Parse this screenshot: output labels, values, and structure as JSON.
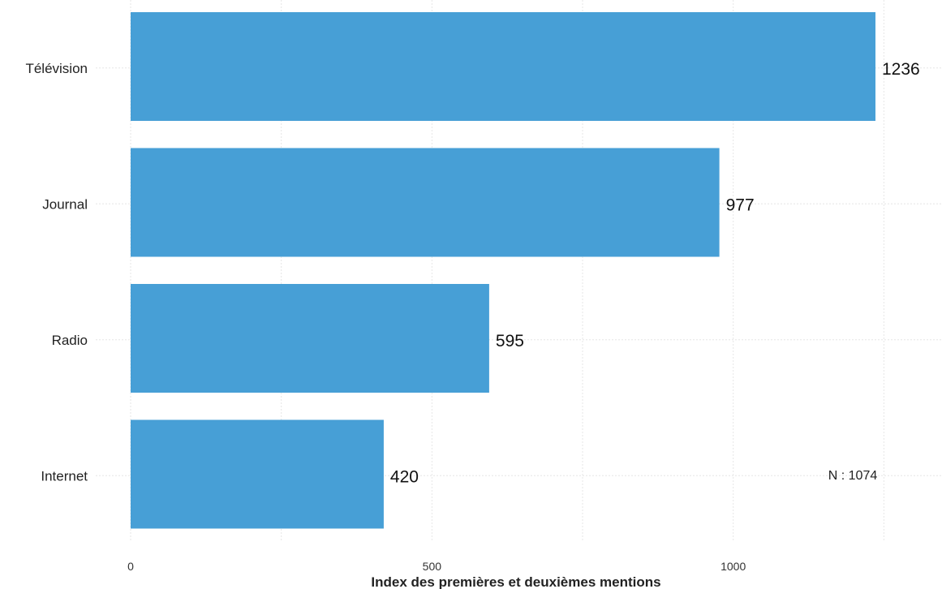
{
  "chart_data": {
    "type": "bar",
    "orientation": "horizontal",
    "categories": [
      "Télévision",
      "Journal",
      "Radio",
      "Internet"
    ],
    "values": [
      1236,
      977,
      595,
      420
    ],
    "xlabel": "Index des premières et deuxièmes mentions",
    "ylabel": "",
    "xlim": [
      0,
      1300
    ],
    "xticks": [
      0,
      500,
      1000
    ],
    "grid": true,
    "bar_color": "#479fd6",
    "note": "N : 1074"
  }
}
